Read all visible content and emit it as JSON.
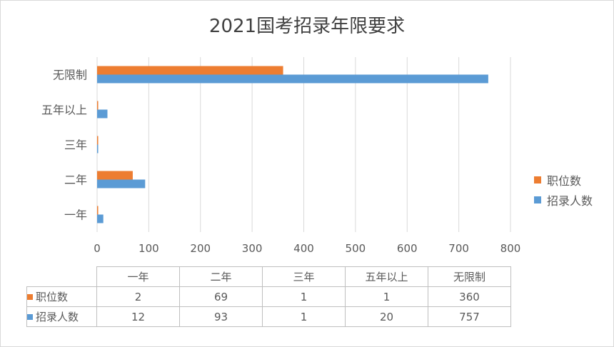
{
  "chart_data": {
    "type": "bar",
    "orientation": "horizontal",
    "title": "2021国考招录年限要求",
    "categories": [
      "一年",
      "二年",
      "三年",
      "五年以上",
      "无限制"
    ],
    "series": [
      {
        "name": "职位数",
        "values": [
          2,
          69,
          1,
          1,
          360
        ],
        "color": "#ED7D31"
      },
      {
        "name": "招录人数",
        "values": [
          12,
          93,
          1,
          20,
          757
        ],
        "color": "#5B9BD5"
      }
    ],
    "xlim": [
      0,
      800
    ],
    "xticks": [
      "0",
      "100",
      "200",
      "300",
      "400",
      "500",
      "600",
      "700",
      "800"
    ],
    "grid": true,
    "legend": "right",
    "data_table": true
  }
}
